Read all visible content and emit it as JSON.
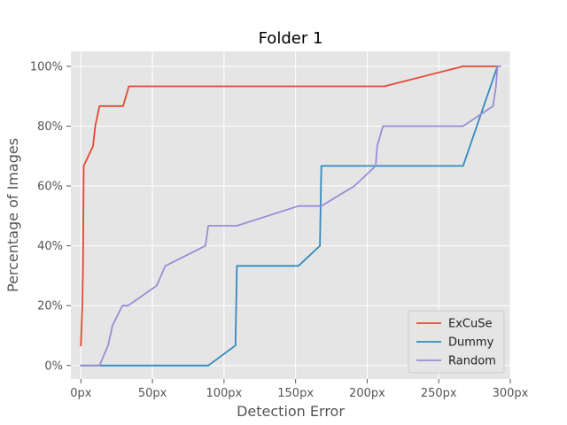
{
  "chart_data": {
    "type": "line",
    "title": "Folder 1",
    "xlabel": "Detection Error",
    "ylabel": "Percentage of Images",
    "xlim": [
      -7,
      300
    ],
    "ylim": [
      -4.5,
      105
    ],
    "x_ticks": [
      0,
      50,
      100,
      150,
      200,
      250,
      300
    ],
    "x_tick_labels": [
      "0px",
      "50px",
      "100px",
      "150px",
      "200px",
      "250px",
      "300px"
    ],
    "y_ticks": [
      0,
      20,
      40,
      60,
      80,
      100
    ],
    "y_tick_labels": [
      "0%",
      "20%",
      "40%",
      "60%",
      "80%",
      "100%"
    ],
    "grid": true,
    "legend_position": "bottom-right",
    "series": [
      {
        "name": "ExCuSe",
        "color": "#e24a33",
        "points": [
          [
            0,
            6.7
          ],
          [
            1,
            20
          ],
          [
            1.5,
            33.3
          ],
          [
            2,
            66.7
          ],
          [
            8.5,
            73.3
          ],
          [
            10,
            80
          ],
          [
            13,
            86.7
          ],
          [
            29.5,
            86.7
          ],
          [
            33.5,
            93.3
          ],
          [
            212,
            93.3
          ],
          [
            267,
            100
          ],
          [
            291,
            100
          ]
        ]
      },
      {
        "name": "Dummy",
        "color": "#348abd",
        "points": [
          [
            0,
            0
          ],
          [
            89,
            0
          ],
          [
            108,
            6.7
          ],
          [
            109,
            33.3
          ],
          [
            152,
            33.3
          ],
          [
            167,
            40
          ],
          [
            168,
            66.7
          ],
          [
            267,
            66.7
          ],
          [
            291,
            100
          ]
        ]
      },
      {
        "name": "Random",
        "color": "#988ed5",
        "points": [
          [
            0,
            0
          ],
          [
            13,
            0
          ],
          [
            19,
            6.7
          ],
          [
            22,
            13.3
          ],
          [
            29,
            20
          ],
          [
            33,
            20
          ],
          [
            53,
            26.7
          ],
          [
            59,
            33.3
          ],
          [
            87,
            40
          ],
          [
            89,
            46.7
          ],
          [
            109,
            46.7
          ],
          [
            152,
            53.3
          ],
          [
            168,
            53.3
          ],
          [
            191,
            60
          ],
          [
            206,
            66.7
          ],
          [
            207,
            73.3
          ],
          [
            211,
            80
          ],
          [
            267,
            80
          ],
          [
            288,
            86.7
          ],
          [
            290,
            93.3
          ],
          [
            291,
            100
          ],
          [
            293,
            100
          ]
        ]
      }
    ]
  }
}
